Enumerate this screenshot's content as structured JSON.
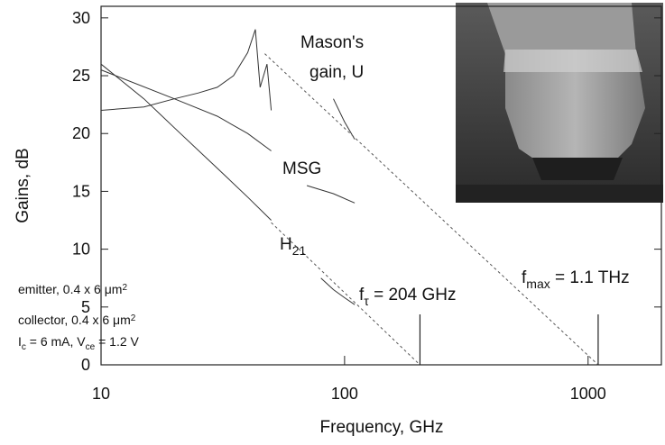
{
  "chart_data": {
    "type": "line",
    "xlabel": "Frequency, GHz",
    "ylabel": "Gains, dB",
    "xscale": "log",
    "xlim": [
      10,
      2000
    ],
    "xticks": [
      10,
      100,
      1000
    ],
    "ylim": [
      0,
      31
    ],
    "yticks": [
      0,
      5,
      10,
      15,
      20,
      25,
      30
    ],
    "series": [
      {
        "color": "#333333",
        "dash": false,
        "x": [
          10,
          15,
          20,
          25,
          30,
          35,
          40,
          43,
          45,
          48,
          50,
          null,
          90,
          100,
          110
        ],
        "values": [
          22,
          22.3,
          23,
          23.5,
          24,
          25,
          27,
          29,
          24,
          26,
          22,
          null,
          23,
          21,
          19.5
        ]
      },
      {
        "color": "#333333",
        "dash": false,
        "x": [
          10,
          20,
          30,
          40,
          50,
          null,
          70,
          90,
          110
        ],
        "values": [
          25.5,
          23,
          21.5,
          20,
          18.5,
          null,
          15.5,
          14.8,
          14
        ]
      },
      {
        "color": "#333333",
        "dash": false,
        "x": [
          10,
          15,
          20,
          30,
          40,
          50,
          null,
          80,
          90,
          100,
          110
        ],
        "values": [
          26,
          23,
          20.5,
          17,
          14.5,
          12.5,
          null,
          7.5,
          6.5,
          5.8,
          5.2
        ]
      },
      {
        "color": "#555555",
        "dash": true,
        "x": [
          47,
          1100
        ],
        "values": [
          26.9,
          0
        ]
      },
      {
        "color": "#555555",
        "dash": true,
        "x": [
          50,
          204
        ],
        "values": [
          12.3,
          0
        ]
      }
    ],
    "markers": [
      204,
      1100
    ],
    "annotations": [
      [
        {
          "text": "Mason's"
        }
      ],
      [
        {
          "text": "gain, U"
        }
      ],
      [
        {
          "text": "MSG"
        }
      ],
      [
        {
          "text": "H"
        },
        {
          "text": "21",
          "sub": true
        }
      ],
      [
        {
          "text": "f"
        },
        {
          "text": "τ",
          "sub": true
        },
        {
          "text": " = 204 GHz"
        }
      ],
      [
        {
          "text": "f"
        },
        {
          "text": "max",
          "sub": true
        },
        {
          "text": " = 1.1 THz"
        }
      ],
      [
        {
          "text": "emitter, 0.4 x 6 μm"
        },
        {
          "text": "2",
          "sup": true
        }
      ],
      [
        {
          "text": "collector, 0.4 x 6 μm"
        },
        {
          "text": "2",
          "sup": true
        }
      ],
      [
        {
          "text": "I"
        },
        {
          "text": "c",
          "sub": true
        },
        {
          "text": " = 6 mA, V"
        },
        {
          "text": "ce",
          "sub": true
        },
        {
          "text": " = 1.2 V"
        }
      ]
    ]
  }
}
